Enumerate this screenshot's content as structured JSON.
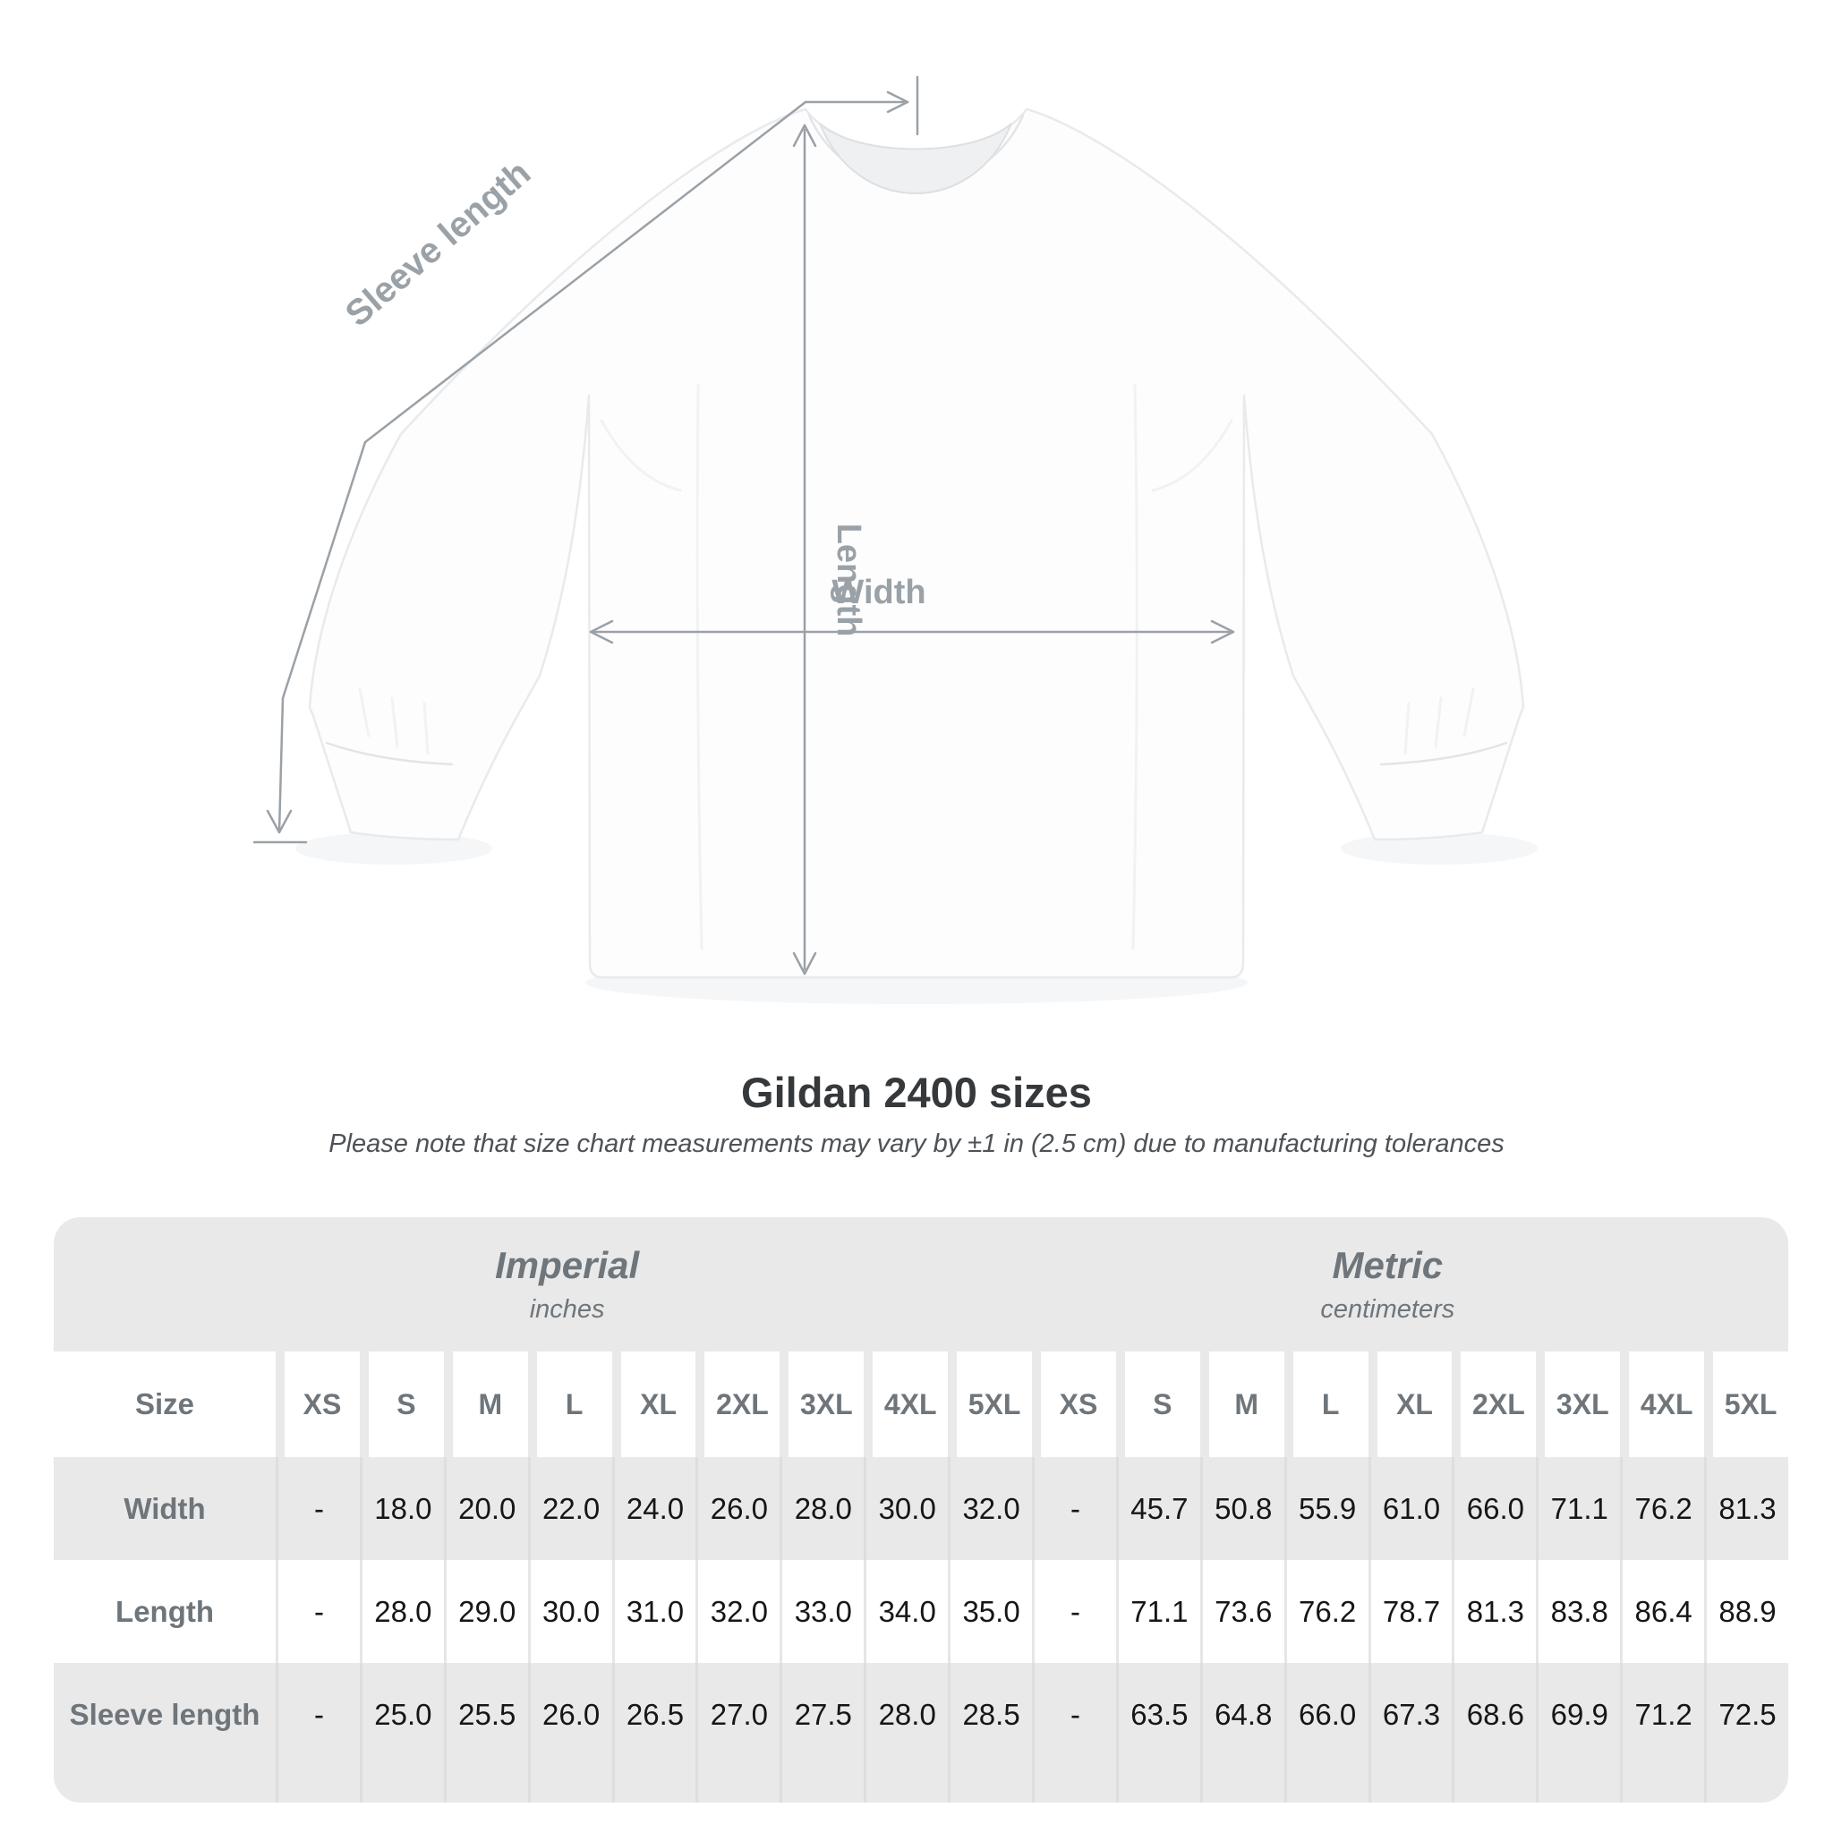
{
  "diagram": {
    "labels": {
      "sleeve_length": "Sleeve length",
      "length": "Length",
      "width": "Width"
    }
  },
  "title": "Gildan 2400 sizes",
  "subtitle": "Please note that size chart measurements may vary by ±1 in (2.5 cm) due to manufacturing tolerances",
  "table": {
    "unit_groups": [
      {
        "name": "Imperial",
        "unit": "inches"
      },
      {
        "name": "Metric",
        "unit": "centimeters"
      }
    ],
    "size_header": "Size",
    "sizes": [
      "XS",
      "S",
      "M",
      "L",
      "XL",
      "2XL",
      "3XL",
      "4XL",
      "5XL"
    ],
    "rows": [
      {
        "label": "Width",
        "imperial": [
          "-",
          "18.0",
          "20.0",
          "22.0",
          "24.0",
          "26.0",
          "28.0",
          "30.0",
          "32.0"
        ],
        "metric": [
          "-",
          "45.7",
          "50.8",
          "55.9",
          "61.0",
          "66.0",
          "71.1",
          "76.2",
          "81.3"
        ]
      },
      {
        "label": "Length",
        "imperial": [
          "-",
          "28.0",
          "29.0",
          "30.0",
          "31.0",
          "32.0",
          "33.0",
          "34.0",
          "35.0"
        ],
        "metric": [
          "-",
          "71.1",
          "73.6",
          "76.2",
          "78.7",
          "81.3",
          "83.8",
          "86.4",
          "88.9"
        ]
      },
      {
        "label": "Sleeve length",
        "imperial": [
          "-",
          "25.0",
          "25.5",
          "26.0",
          "26.5",
          "27.0",
          "27.5",
          "28.0",
          "28.5"
        ],
        "metric": [
          "-",
          "63.5",
          "64.8",
          "66.0",
          "67.3",
          "68.6",
          "69.9",
          "71.2",
          "72.5"
        ]
      }
    ]
  },
  "chart_data": {
    "type": "table",
    "title": "Gildan 2400 sizes",
    "columns": [
      "Size",
      "XS",
      "S",
      "M",
      "L",
      "XL",
      "2XL",
      "3XL",
      "4XL",
      "5XL"
    ],
    "unit_groups": [
      "Imperial (inches)",
      "Metric (centimeters)"
    ],
    "rows_imperial": [
      [
        "Width",
        null,
        18.0,
        20.0,
        22.0,
        24.0,
        26.0,
        28.0,
        30.0,
        32.0
      ],
      [
        "Length",
        null,
        28.0,
        29.0,
        30.0,
        31.0,
        32.0,
        33.0,
        34.0,
        35.0
      ],
      [
        "Sleeve length",
        null,
        25.0,
        25.5,
        26.0,
        26.5,
        27.0,
        27.5,
        28.0,
        28.5
      ]
    ],
    "rows_metric": [
      [
        "Width",
        null,
        45.7,
        50.8,
        55.9,
        61.0,
        66.0,
        71.1,
        76.2,
        81.3
      ],
      [
        "Length",
        null,
        71.1,
        73.6,
        76.2,
        78.7,
        81.3,
        83.8,
        86.4,
        88.9
      ],
      [
        "Sleeve length",
        null,
        63.5,
        64.8,
        66.0,
        67.3,
        68.6,
        69.9,
        71.2,
        72.5
      ]
    ]
  },
  "colors": {
    "table_bg": "#e9e9e9",
    "label_text": "#6e757b",
    "number_text": "#161616",
    "title_text": "#35393c",
    "subtitle_text": "#4e5256",
    "annotation": "#9aa1a7",
    "shirt": "#fdfdfe"
  }
}
